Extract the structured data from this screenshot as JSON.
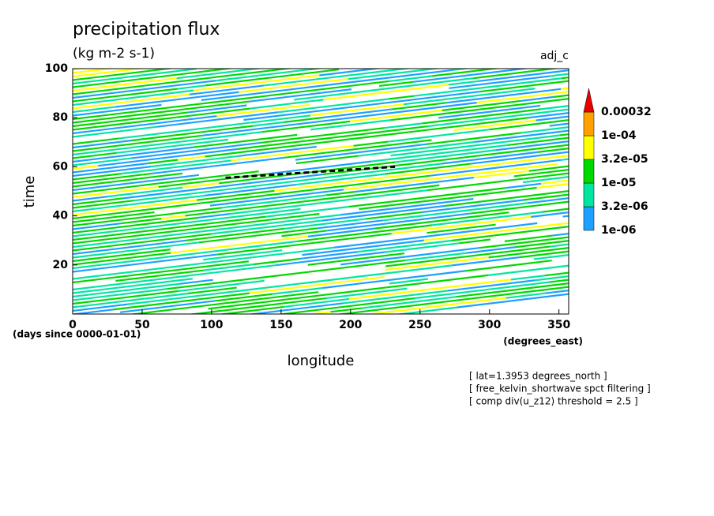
{
  "chart_data": {
    "type": "hovmoller",
    "title": "precipitation flux",
    "subtitle": "(kg m-2 s-1)",
    "experiment": "adj_c",
    "x_label": "longitude",
    "y_label": "time",
    "x_units": "(degrees_east)",
    "y_units": "(days since 0000-01-01)",
    "xlim": [
      0,
      357
    ],
    "ylim": [
      0,
      100
    ],
    "xticks": [
      0,
      50,
      100,
      150,
      200,
      250,
      300,
      350
    ],
    "yticks": [
      20,
      40,
      60,
      80,
      100
    ],
    "levels": [
      {
        "value": 1e-06,
        "label": "1e-06"
      },
      {
        "value": 3.2e-06,
        "label": "3.2e-06"
      },
      {
        "value": 1e-05,
        "label": "1e-05"
      },
      {
        "value": 3.2e-05,
        "label": "3.2e-05"
      },
      {
        "value": 0.0001,
        "label": "1e-04"
      },
      0.00032
    ],
    "level_colors": [
      "#1ea0ff",
      "#00e6a0",
      "#00d800",
      "#ffff00",
      "#ffa000",
      "#e60000"
    ],
    "trend_line": {
      "x": [
        110,
        232
      ],
      "y": [
        55.5,
        60
      ],
      "color": "#000000"
    },
    "annotations": [
      "[ lat=1.3953 degrees_north ]",
      "[ free_kelvin_shortwave spct filtering ]",
      "[ comp div(u_z12) threshold = 2.5 ]"
    ]
  }
}
